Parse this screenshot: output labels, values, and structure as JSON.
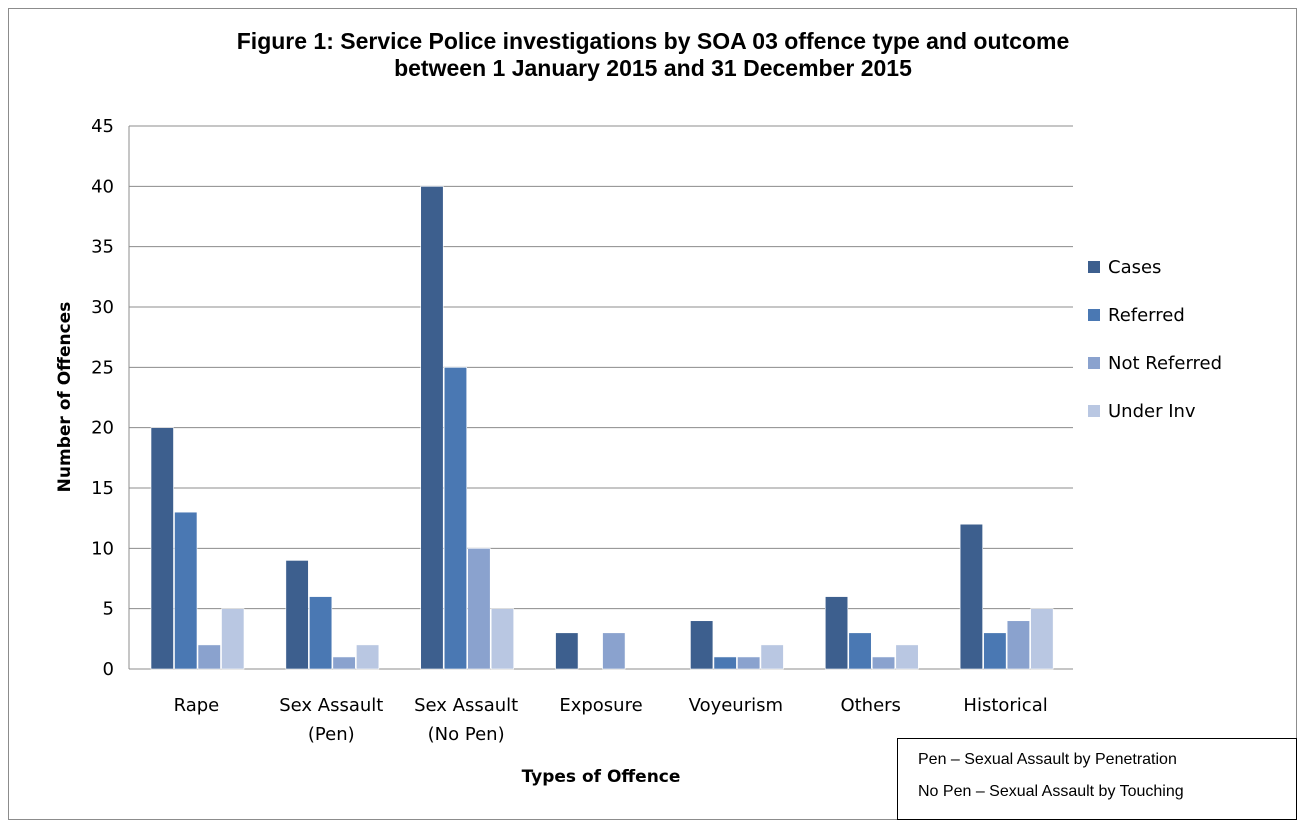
{
  "title": {
    "line1": "Figure 1: Service Police investigations by SOA 03 offence type and outcome",
    "line2": "between 1 January 2015 and 31 December 2015"
  },
  "notes": [
    "Pen – Sexual Assault by Penetration",
    "No Pen – Sexual Assault by Touching"
  ],
  "chart_data": {
    "type": "bar",
    "title": "Figure 1: Service Police investigations by SOA 03 offence type and outcome between 1 January 2015 and 31 December 2015",
    "xlabel": "Types of Offence",
    "ylabel": "Number of Offences",
    "ylim": [
      0,
      45
    ],
    "yticks": [
      0,
      5,
      10,
      15,
      20,
      25,
      30,
      35,
      40,
      45
    ],
    "grid": true,
    "legend_position": "right",
    "categories": [
      [
        "Rape"
      ],
      [
        "Sex Assault",
        "(Pen)"
      ],
      [
        "Sex Assault",
        "(No Pen)"
      ],
      [
        "Exposure"
      ],
      [
        "Voyeurism"
      ],
      [
        "Others"
      ],
      [
        "Historical"
      ]
    ],
    "series": [
      {
        "name": "Cases",
        "color": "#3d5f8e",
        "values": [
          20,
          9,
          40,
          3,
          4,
          6,
          12
        ]
      },
      {
        "name": "Referred",
        "color": "#4a78b3",
        "values": [
          13,
          6,
          25,
          0,
          1,
          3,
          3
        ]
      },
      {
        "name": "Not Referred",
        "color": "#8aa2ce",
        "values": [
          2,
          1,
          10,
          3,
          1,
          1,
          4
        ]
      },
      {
        "name": "Under Inv",
        "color": "#b9c7e2",
        "values": [
          5,
          2,
          5,
          0,
          2,
          2,
          5
        ]
      }
    ]
  }
}
